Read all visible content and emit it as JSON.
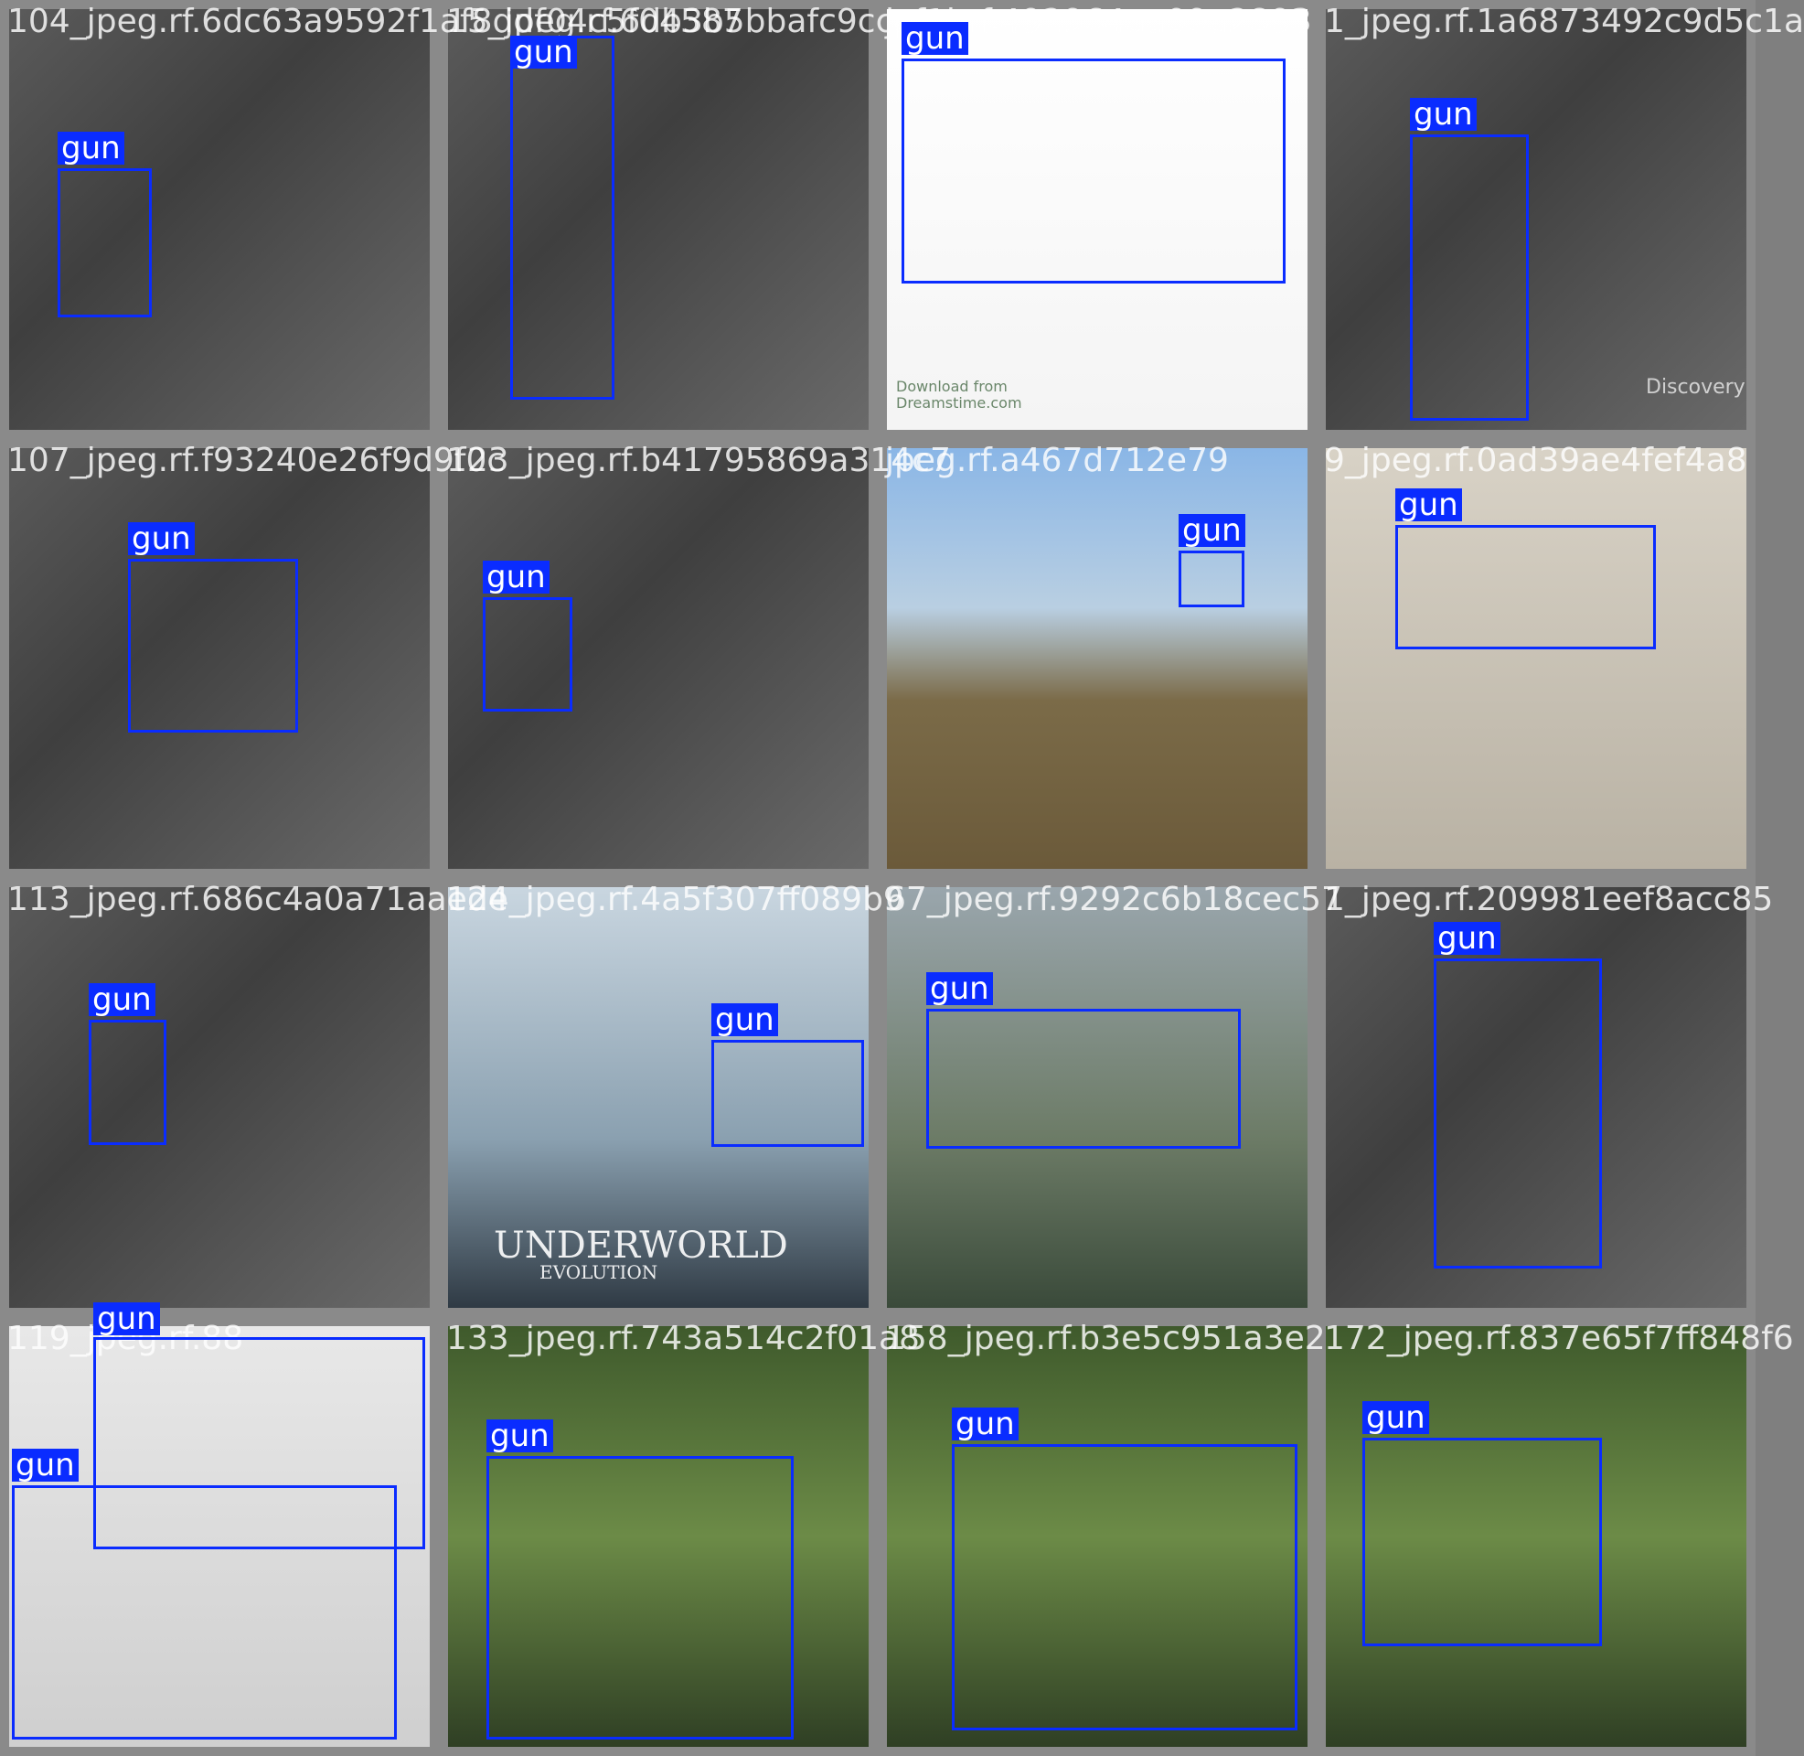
{
  "tiles": [
    {
      "filename": "104_jpeg.rf.6dc63a9592f1af8ddf04c5f04587",
      "detections": [
        {
          "label": "gun"
        }
      ]
    },
    {
      "filename": "15_jpeg.rf.6db3b5bbafc9ccaf1b",
      "detections": [
        {
          "label": "gun"
        }
      ]
    },
    {
      "filename": "jpeg.rf.492964aa09a2893",
      "detections": [
        {
          "label": "gun"
        }
      ]
    },
    {
      "filename": "1_jpeg.rf.1a6873492c9d5c1a",
      "detections": [
        {
          "label": "gun"
        }
      ]
    },
    {
      "filename": "107_jpeg.rf.f93240e26f9d9f0c",
      "detections": [
        {
          "label": "gun"
        }
      ]
    },
    {
      "filename": "123_jpeg.rf.b41795869a314c7",
      "detections": [
        {
          "label": "gun"
        }
      ]
    },
    {
      "filename": "jpeg.rf.a467d712e79",
      "detections": [
        {
          "label": "gun"
        }
      ]
    },
    {
      "filename": "9_jpeg.rf.0ad39ae4fef4a8",
      "detections": [
        {
          "label": "gun"
        }
      ]
    },
    {
      "filename": "113_jpeg.rf.686c4a0a71aaede",
      "detections": [
        {
          "label": "gun"
        }
      ]
    },
    {
      "filename": "124_jpeg.rf.4a5f307ff089b9",
      "detections": [
        {
          "label": "gun"
        }
      ]
    },
    {
      "filename": "67_jpeg.rf.9292c6b18cec57",
      "detections": [
        {
          "label": "gun"
        }
      ]
    },
    {
      "filename": "1_jpeg.rf.209981eef8acc85",
      "detections": [
        {
          "label": "gun"
        }
      ]
    },
    {
      "filename": "119_jpeg.rf.88",
      "detections": [
        {
          "label": "gun"
        },
        {
          "label": "gun"
        }
      ]
    },
    {
      "filename": "133_jpeg.rf.743a514c2f01a8",
      "detections": [
        {
          "label": "gun"
        }
      ]
    },
    {
      "filename": "158_jpeg.rf.b3e5c951a3e2",
      "detections": [
        {
          "label": "gun"
        }
      ]
    },
    {
      "filename": "172_jpeg.rf.837e65f7ff848f6",
      "detections": [
        {
          "label": "gun"
        }
      ]
    }
  ],
  "watermarks": {
    "discovery": "Discovery",
    "dreamstime_line1": "Download from",
    "dreamstime_line2": "Dreamstime.com",
    "poster_title": "UNDERWORLD",
    "poster_subtitle": "EVOLUTION"
  },
  "colors": {
    "bbox_blue": "#0a2cff",
    "label_text": "#ffffff",
    "grid_gutter": "#7f7f7f"
  }
}
